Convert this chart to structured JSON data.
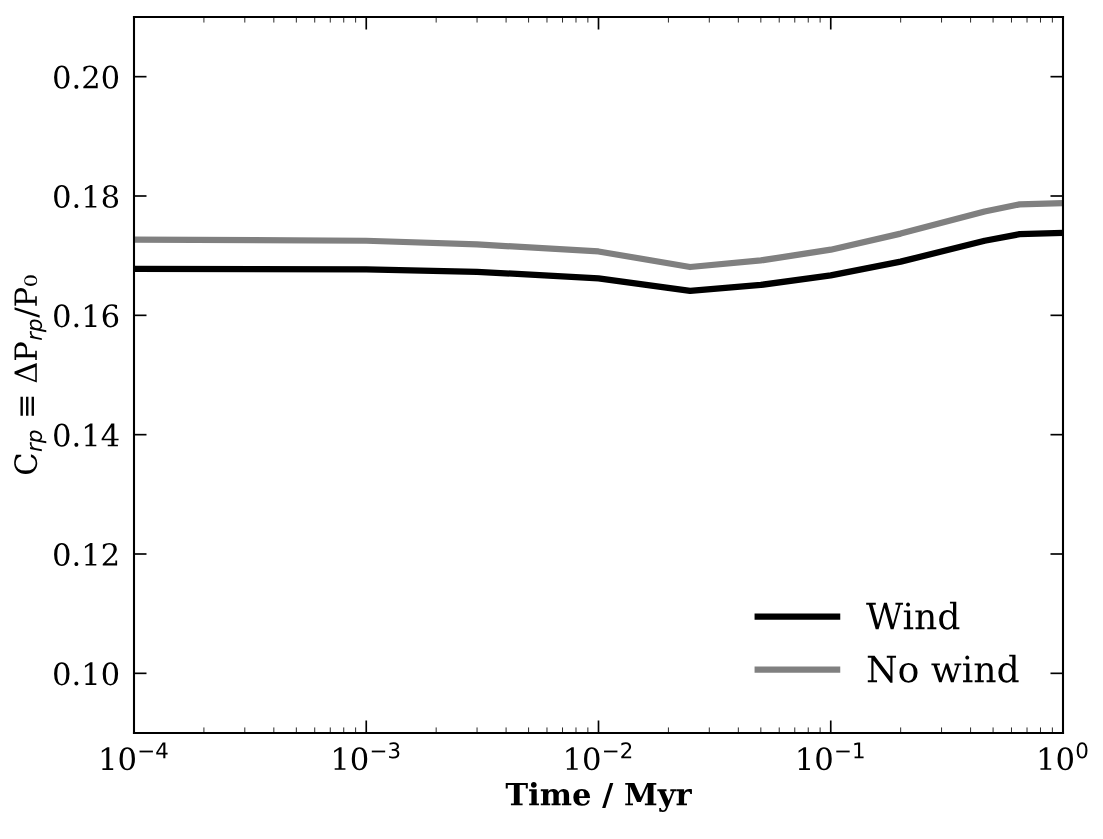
{
  "chart_data": {
    "type": "line",
    "xlabel": "Time / Myr",
    "ylabel": "C$_{rp}$ ≡ ΔP$_{rp}$/P₀",
    "log": "x",
    "xlim": [
      0.0001,
      1
    ],
    "xticks": [
      {
        "value": 0.0001,
        "label": "10$^{−4}$"
      },
      {
        "value": 0.001,
        "label": "10$^{−3}$"
      },
      {
        "value": 0.01,
        "label": "10$^{−2}$"
      },
      {
        "value": 0.1,
        "label": "10$^{−1}$"
      },
      {
        "value": 1,
        "label": "10$^{0}$"
      }
    ],
    "ylim": [
      0.09,
      0.21
    ],
    "yticks": [
      {
        "value": 0.1,
        "label": "0.10"
      },
      {
        "value": 0.12,
        "label": "0.12"
      },
      {
        "value": 0.14,
        "label": "0.14"
      },
      {
        "value": 0.16,
        "label": "0.16"
      },
      {
        "value": 0.18,
        "label": "0.18"
      },
      {
        "value": 0.2,
        "label": "0.20"
      }
    ],
    "x": [
      0.0001,
      0.001,
      0.003,
      0.01,
      0.0248,
      0.05,
      0.1,
      0.2,
      0.46,
      0.65,
      1
    ],
    "series": [
      {
        "name": "Wind",
        "color": "#000000",
        "values": [
          0.1678,
          0.1677,
          0.1673,
          0.1662,
          0.1641,
          0.1651,
          0.1667,
          0.169,
          0.1725,
          0.1736,
          0.1738
        ]
      },
      {
        "name": "No wind",
        "color": "#808080",
        "values": [
          0.1727,
          0.1725,
          0.1719,
          0.1707,
          0.1681,
          0.1692,
          0.171,
          0.1737,
          0.1774,
          0.1786,
          0.1788
        ]
      }
    ],
    "legend": "bottom right",
    "grid": false,
    "marker": "none",
    "line_style": "solid"
  }
}
